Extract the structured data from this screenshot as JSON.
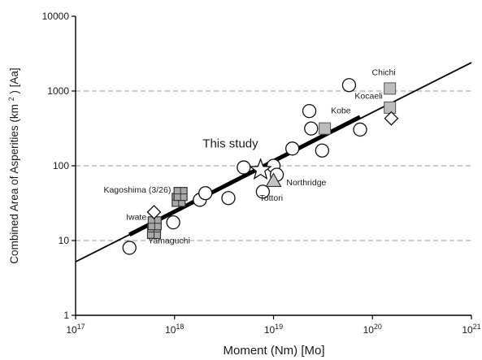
{
  "chart_data": {
    "type": "scatter",
    "title": "",
    "xlabel": "Moment (Nm) [Mo]",
    "ylabel": "Combined Area of Asperities (km",
    "ylabel_sup": "2",
    "ylabel_tail": ") [Aa]",
    "x_scale": "log",
    "y_scale": "log",
    "xlim": [
      1e+17,
      1e+21
    ],
    "ylim": [
      1,
      10000
    ],
    "x_ticks": [
      {
        "value": 1e+17,
        "base": "10",
        "exp": "17"
      },
      {
        "value": 1e+18,
        "base": "10",
        "exp": "18"
      },
      {
        "value": 1e+19,
        "base": "10",
        "exp": "19"
      },
      {
        "value": 1e+20,
        "base": "10",
        "exp": "20"
      },
      {
        "value": 1e+21,
        "base": "10",
        "exp": "21"
      }
    ],
    "y_ticks": [
      {
        "value": 1,
        "label": "1"
      },
      {
        "value": 10,
        "label": "10"
      },
      {
        "value": 100,
        "label": "100"
      },
      {
        "value": 1000,
        "label": "1000"
      },
      {
        "value": 10000,
        "label": "10000"
      }
    ],
    "gridlines_y": [
      10,
      100,
      1000
    ],
    "fit_line": {
      "x": [
        1e+17,
        1e+21
      ],
      "y": [
        5.2,
        2400
      ]
    },
    "bold_segment": {
      "x": [
        3.5e+17,
        7.5e+19
      ],
      "y": [
        12,
        450
      ]
    },
    "series": [
      {
        "marker": "circle",
        "points": [
          {
            "x": 3.5e+17,
            "y": 8
          },
          {
            "x": 9.7e+17,
            "y": 17.5
          },
          {
            "x": 1.8e+18,
            "y": 35
          },
          {
            "x": 2.05e+18,
            "y": 43
          },
          {
            "x": 3.5e+18,
            "y": 37
          },
          {
            "x": 5e+18,
            "y": 95
          },
          {
            "x": 7.8e+18,
            "y": 45
          },
          {
            "x": 1e+19,
            "y": 100
          },
          {
            "x": 1.08e+19,
            "y": 76
          },
          {
            "x": 1.55e+19,
            "y": 170
          },
          {
            "x": 2.3e+19,
            "y": 540
          },
          {
            "x": 2.4e+19,
            "y": 315
          },
          {
            "x": 3.1e+19,
            "y": 160
          },
          {
            "x": 5.8e+19,
            "y": 1200
          },
          {
            "x": 7.5e+19,
            "y": 305
          }
        ]
      },
      {
        "marker": "square",
        "points": [
          {
            "x": 3.3e+19,
            "y": 315
          },
          {
            "x": 1.5e+20,
            "y": 1080
          },
          {
            "x": 1.5e+20,
            "y": 600
          }
        ]
      },
      {
        "marker": "grid-square",
        "points": [
          {
            "x": 6.2e+17,
            "y": 13
          },
          {
            "x": 6.3e+17,
            "y": 17
          },
          {
            "x": 1.1e+18,
            "y": 35
          },
          {
            "x": 1.15e+18,
            "y": 42
          }
        ]
      },
      {
        "marker": "triangle",
        "points": [
          {
            "x": 1e+19,
            "y": 63
          }
        ]
      },
      {
        "marker": "diamond",
        "points": [
          {
            "x": 6.2e+17,
            "y": 24
          },
          {
            "x": 1.55e+20,
            "y": 430
          }
        ]
      },
      {
        "marker": "star",
        "points": [
          {
            "x": 7.4e+18,
            "y": 88
          }
        ]
      }
    ],
    "annotations": [
      {
        "text": "This study",
        "x": 7e+18,
        "y": 175,
        "anchor": "end",
        "size": "large"
      },
      {
        "text": "Chichi",
        "x": 1.3e+20,
        "y": 1620,
        "anchor": "middle",
        "size": "small"
      },
      {
        "text": "Kocaeli",
        "x": 1.27e+20,
        "y": 790,
        "anchor": "end",
        "size": "small"
      },
      {
        "text": "Kobe",
        "x": 3.8e+19,
        "y": 505,
        "anchor": "start",
        "size": "small"
      },
      {
        "text": "Northridge",
        "x": 1.35e+19,
        "y": 55,
        "anchor": "start",
        "size": "small"
      },
      {
        "text": "Tottori",
        "x": 9.5e+18,
        "y": 34,
        "anchor": "middle",
        "size": "small"
      },
      {
        "text": "Kagoshima (3/26)",
        "x": 9.2e+17,
        "y": 44,
        "anchor": "end",
        "size": "small"
      },
      {
        "text": "Iwate",
        "x": 5.2e+17,
        "y": 19,
        "anchor": "end",
        "size": "small"
      },
      {
        "text": "Yamaguchi",
        "x": 8.8e+17,
        "y": 9.2,
        "anchor": "middle",
        "size": "small"
      }
    ]
  }
}
